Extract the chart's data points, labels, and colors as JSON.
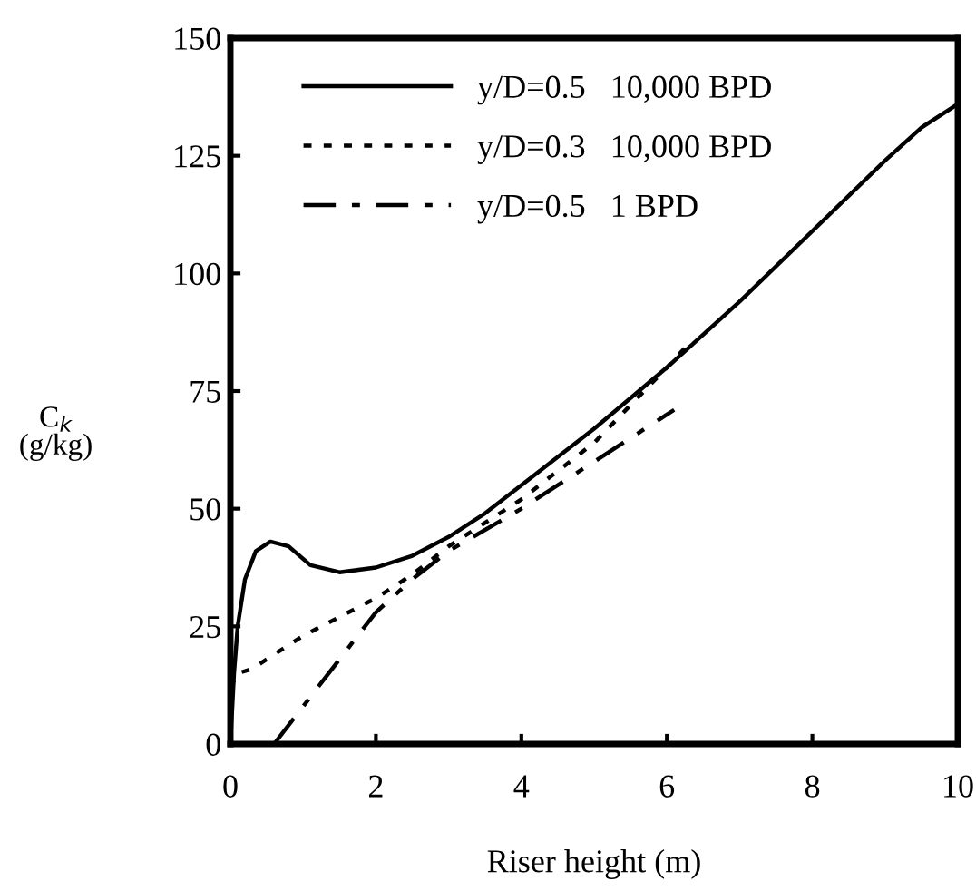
{
  "chart_data": {
    "type": "line",
    "xlabel": "Riser height (m)",
    "ylabel": "C$_{k}$\n(g/kg)",
    "xlim": [
      0,
      10
    ],
    "ylim": [
      0,
      150
    ],
    "xticks": [
      0,
      2,
      4,
      6,
      8,
      10
    ],
    "yticks": [
      0,
      25,
      50,
      75,
      100,
      125,
      150
    ],
    "grid": false,
    "legend": "top left",
    "marker": "none",
    "series": [
      {
        "name": "y/D=0.5   10,000 BPD",
        "color": "#000000",
        "line_style": "solid",
        "x": [
          0,
          0.05,
          0.1,
          0.2,
          0.35,
          0.55,
          0.8,
          1.1,
          1.5,
          2,
          2.5,
          3,
          3.5,
          4,
          5,
          6,
          7,
          8,
          9,
          9.5,
          10
        ],
        "values": [
          0,
          15,
          25,
          35,
          41,
          43,
          42,
          38,
          36.5,
          37.5,
          40,
          44,
          49,
          55,
          67,
          80,
          94,
          109,
          124,
          131,
          136
        ]
      },
      {
        "name": "y/D=0.3   10,000 BPD",
        "color": "#000000",
        "line_style": "dotted",
        "x": [
          0,
          0.1,
          0.3,
          0.6,
          1,
          1.5,
          2,
          2.5,
          3,
          4,
          5,
          6,
          6.3
        ],
        "values": [
          12,
          15,
          16,
          19,
          23,
          27,
          31,
          36,
          42,
          52,
          64,
          80,
          85
        ]
      },
      {
        "name": "y/D=0.5   1 BPD",
        "color": "#000000",
        "line_style": "dashdot",
        "x": [
          0.6,
          1,
          1.5,
          2,
          2.5,
          3,
          4,
          5,
          6,
          6.1
        ],
        "values": [
          0,
          8,
          18,
          28,
          35,
          41,
          50,
          60,
          70,
          71
        ]
      }
    ]
  }
}
